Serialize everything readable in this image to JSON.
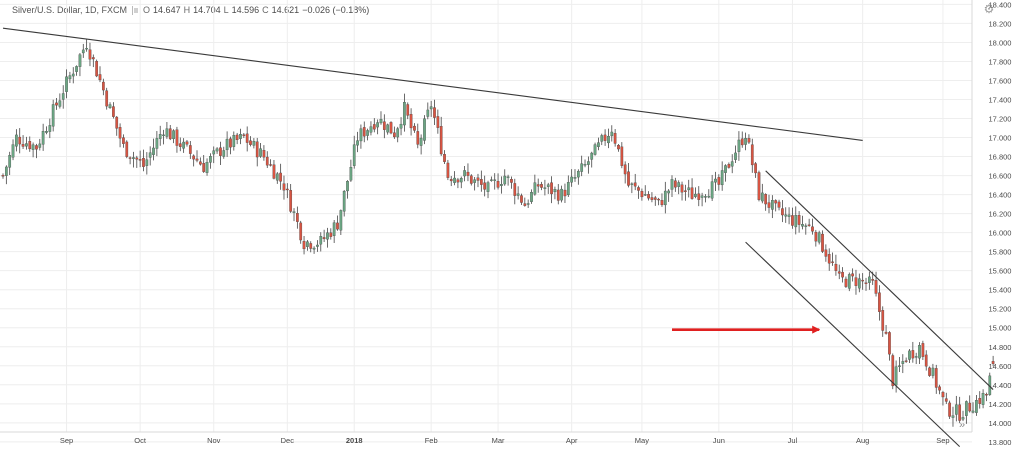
{
  "legend": {
    "symbol": "Silver/U.S. Dollar, 1D, FXCM",
    "open_key": "O",
    "open_val": "14.647",
    "high_key": "H",
    "high_val": "14.704",
    "low_key": "L",
    "low_val": "14.596",
    "close_key": "C",
    "close_val": "14.621",
    "change": "−0.026 (−0.18%)"
  },
  "icons": {
    "settings": "gear-icon",
    "goto_realtime": "chevron-right-icon"
  },
  "colors": {
    "up": "#6ba583",
    "down": "#d75442",
    "wick": "#444444",
    "trendline": "#3a3a3a",
    "arrow": "#e02020",
    "grid": "#eeeeee",
    "axis_text": "#4a4a4a"
  },
  "chart_data": {
    "type": "candlestick",
    "symbol": "Silver/U.S. Dollar",
    "interval": "1D",
    "source": "FXCM",
    "x_axis_labels": [
      "Sep",
      "Oct",
      "Nov",
      "Dec",
      "2018",
      "Feb",
      "Mar",
      "Apr",
      "May",
      "Jun",
      "Jul",
      "Aug",
      "Sep"
    ],
    "y_axis_labels": [
      "18.400",
      "18.200",
      "18.000",
      "17.800",
      "17.600",
      "17.400",
      "17.200",
      "17.000",
      "16.800",
      "16.600",
      "16.400",
      "16.200",
      "16.000",
      "15.800",
      "15.600",
      "15.400",
      "15.200",
      "15.000",
      "14.800",
      "14.600",
      "14.400",
      "14.200",
      "14.000",
      "13.800"
    ],
    "ylim": [
      13.7,
      18.5
    ],
    "grid": true,
    "price_axis_side": "right",
    "last_bar": {
      "open": 14.647,
      "high": 14.704,
      "low": 14.596,
      "close": 14.621,
      "change": -0.026,
      "change_pct": -0.18
    },
    "close_path": [
      {
        "bar": 0,
        "close": 16.6
      },
      {
        "bar": 4,
        "close": 17.0
      },
      {
        "bar": 10,
        "close": 16.9
      },
      {
        "bar": 18,
        "close": 17.5
      },
      {
        "bar": 25,
        "close": 18.0
      },
      {
        "bar": 30,
        "close": 17.5
      },
      {
        "bar": 36,
        "close": 16.9
      },
      {
        "bar": 42,
        "close": 16.7
      },
      {
        "bar": 48,
        "close": 17.1
      },
      {
        "bar": 54,
        "close": 16.9
      },
      {
        "bar": 60,
        "close": 16.7
      },
      {
        "bar": 66,
        "close": 16.9
      },
      {
        "bar": 72,
        "close": 17.0
      },
      {
        "bar": 78,
        "close": 16.8
      },
      {
        "bar": 84,
        "close": 16.5
      },
      {
        "bar": 90,
        "close": 15.9
      },
      {
        "bar": 95,
        "close": 15.9
      },
      {
        "bar": 100,
        "close": 16.1
      },
      {
        "bar": 106,
        "close": 17.0
      },
      {
        "bar": 112,
        "close": 17.2
      },
      {
        "bar": 117,
        "close": 17.05
      },
      {
        "bar": 120,
        "close": 17.3
      },
      {
        "bar": 124,
        "close": 16.9
      },
      {
        "bar": 128,
        "close": 17.35
      },
      {
        "bar": 133,
        "close": 16.6
      },
      {
        "bar": 138,
        "close": 16.6
      },
      {
        "bar": 145,
        "close": 16.45
      },
      {
        "bar": 150,
        "close": 16.6
      },
      {
        "bar": 156,
        "close": 16.3
      },
      {
        "bar": 160,
        "close": 16.5
      },
      {
        "bar": 167,
        "close": 16.4
      },
      {
        "bar": 174,
        "close": 16.7
      },
      {
        "bar": 178,
        "close": 16.9
      },
      {
        "bar": 182,
        "close": 17.1
      },
      {
        "bar": 187,
        "close": 16.5
      },
      {
        "bar": 192,
        "close": 16.4
      },
      {
        "bar": 196,
        "close": 16.3
      },
      {
        "bar": 200,
        "close": 16.5
      },
      {
        "bar": 206,
        "close": 16.4
      },
      {
        "bar": 210,
        "close": 16.45
      },
      {
        "bar": 214,
        "close": 16.5
      },
      {
        "bar": 218,
        "close": 16.8
      },
      {
        "bar": 222,
        "close": 17.05
      },
      {
        "bar": 226,
        "close": 16.4
      },
      {
        "bar": 232,
        "close": 16.2
      },
      {
        "bar": 238,
        "close": 16.1
      },
      {
        "bar": 242,
        "close": 16.05
      },
      {
        "bar": 246,
        "close": 15.8
      },
      {
        "bar": 250,
        "close": 15.5
      },
      {
        "bar": 255,
        "close": 15.5
      },
      {
        "bar": 260,
        "close": 15.45
      },
      {
        "bar": 264,
        "close": 14.9
      },
      {
        "bar": 266,
        "close": 14.45
      },
      {
        "bar": 270,
        "close": 14.7
      },
      {
        "bar": 274,
        "close": 14.8
      },
      {
        "bar": 278,
        "close": 14.5
      },
      {
        "bar": 282,
        "close": 14.15
      },
      {
        "bar": 286,
        "close": 14.1
      },
      {
        "bar": 290,
        "close": 14.2
      },
      {
        "bar": 294,
        "close": 14.3
      },
      {
        "bar": 296,
        "close": 14.62
      }
    ],
    "annotations": [
      {
        "type": "trendline",
        "name": "descending resistance",
        "from": {
          "bar": 0,
          "price": 18.15
        },
        "to": {
          "bar": 257,
          "price": 16.97
        }
      },
      {
        "type": "trendline",
        "name": "channel upper",
        "from": {
          "bar": 228,
          "price": 16.65
        },
        "to": {
          "bar": 296,
          "price": 14.35
        }
      },
      {
        "type": "trendline",
        "name": "channel lower",
        "from": {
          "bar": 222,
          "price": 15.9
        },
        "to": {
          "bar": 286,
          "price": 13.75
        }
      },
      {
        "type": "arrow",
        "from": {
          "bar": 200,
          "price": 14.98
        },
        "to": {
          "bar": 244,
          "price": 14.98
        }
      }
    ]
  }
}
